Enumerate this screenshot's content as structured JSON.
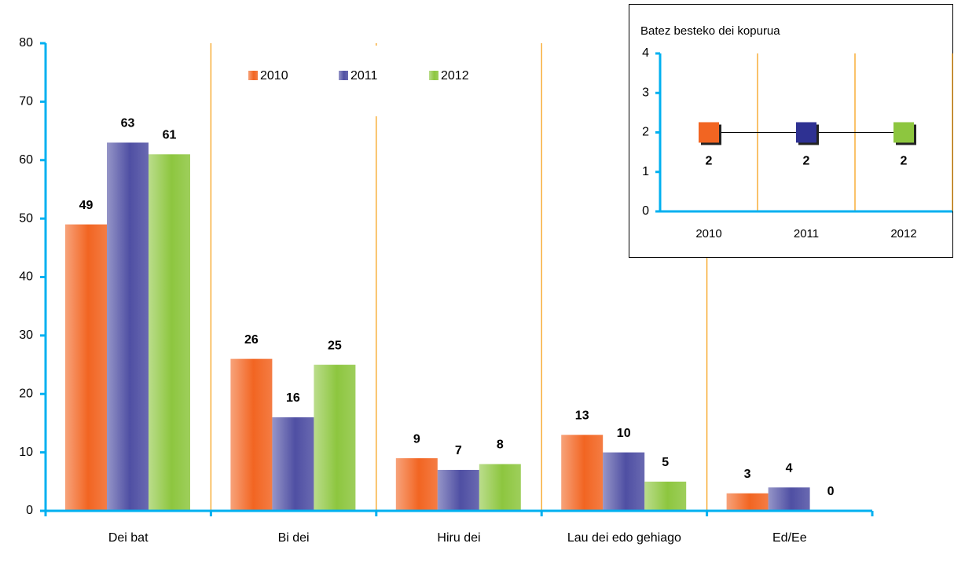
{
  "chart_data": [
    {
      "type": "bar",
      "categories": [
        "Dei bat",
        "Bi dei",
        "Hiru dei",
        "Lau dei edo gehiago",
        "Ed/Ee"
      ],
      "series": [
        {
          "name": "2010",
          "color": "#f26522",
          "values": [
            49,
            26,
            9,
            13,
            3
          ]
        },
        {
          "name": "2011",
          "color": "#4f4fa3",
          "values": [
            63,
            16,
            7,
            10,
            4
          ]
        },
        {
          "name": "2012",
          "color": "#8dc63f",
          "values": [
            61,
            25,
            8,
            5,
            0
          ]
        }
      ],
      "ylim": [
        0,
        80
      ],
      "yticks": [
        0,
        10,
        20,
        30,
        40,
        50,
        60,
        70,
        80
      ],
      "legend": "top"
    },
    {
      "type": "line",
      "title": "Batez besteko dei kopurua",
      "categories": [
        "2010",
        "2011",
        "2012"
      ],
      "values": [
        2,
        2,
        2
      ],
      "colors": [
        "#f26522",
        "#2e3192",
        "#8dc63f"
      ],
      "line_color": "#000000",
      "ylim": [
        0,
        4
      ],
      "yticks": [
        0,
        1,
        2,
        3,
        4
      ]
    }
  ]
}
